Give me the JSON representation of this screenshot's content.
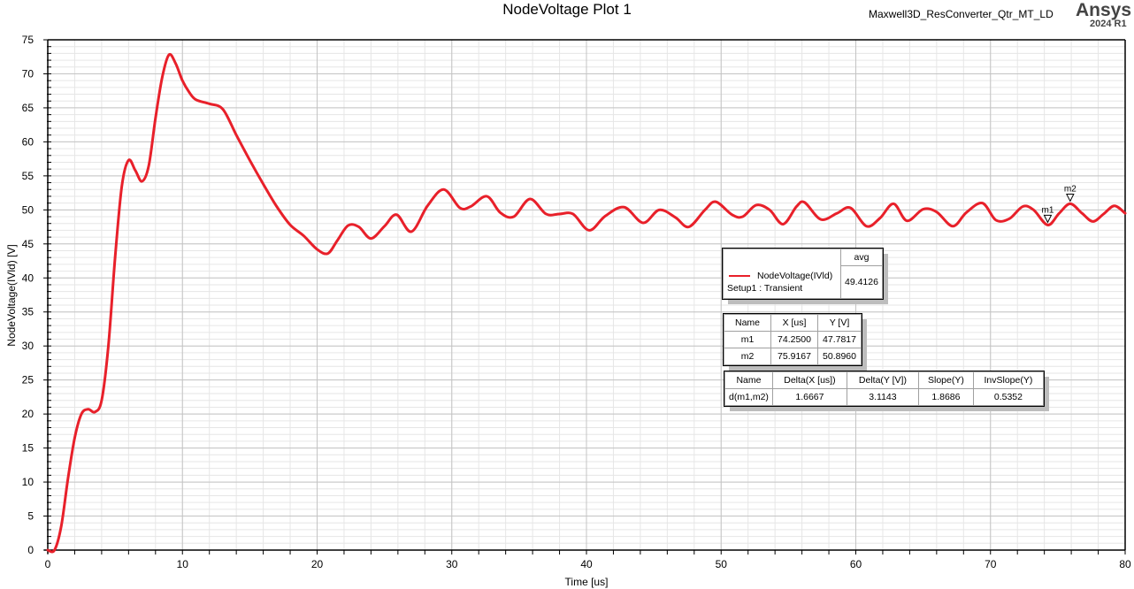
{
  "header": {
    "title": "NodeVoltage Plot 1",
    "project": "Maxwell3D_ResConverter_Qtr_MT_LD",
    "brand": "Ansys",
    "version": "2024 R1"
  },
  "legend": {
    "header": "avg",
    "trace_name": "NodeVoltage(IVld)",
    "setup": "Setup1 : Transient",
    "avg_value": "49.4126",
    "trace_color": "#e8202a"
  },
  "markers_table": {
    "headers": [
      "Name",
      "X [us]",
      "Y [V]"
    ],
    "rows": [
      [
        "m1",
        "74.2500",
        "47.7817"
      ],
      [
        "m2",
        "75.9167",
        "50.8960"
      ]
    ]
  },
  "delta_table": {
    "headers": [
      "Name",
      "Delta(X [us])",
      "Delta(Y [V])",
      "Slope(Y)",
      "InvSlope(Y)"
    ],
    "rows": [
      [
        "d(m1,m2)",
        "1.6667",
        "3.1143",
        "1.8686",
        "0.5352"
      ]
    ]
  },
  "chart_data": {
    "type": "line",
    "title": "NodeVoltage Plot 1",
    "xlabel": "Time [us]",
    "ylabel": "NodeVoltage(IVld) [V]",
    "xlim": [
      0,
      80
    ],
    "ylim": [
      0,
      75
    ],
    "xticks": [
      0,
      10,
      20,
      30,
      40,
      50,
      60,
      70,
      80
    ],
    "yticks": [
      0,
      5,
      10,
      15,
      20,
      25,
      30,
      35,
      40,
      45,
      50,
      55,
      60,
      65,
      70,
      75
    ],
    "grid": true,
    "legend_position": "inside-right-middle",
    "series": [
      {
        "name": "NodeVoltage(IVld)",
        "color": "#e8202a",
        "x": [
          0,
          0.5,
          1.0,
          1.5,
          2.0,
          2.5,
          3.0,
          3.5,
          4.0,
          4.5,
          5.0,
          5.5,
          6.0,
          6.5,
          7.0,
          7.5,
          8.0,
          8.5,
          9.0,
          9.5,
          10.0,
          10.5,
          11.0,
          12.0,
          13.0,
          14.0,
          15.0,
          16.0,
          17.0,
          18.0,
          19.0,
          20.0,
          20.8,
          21.5,
          22.3,
          23.1,
          24.0,
          25.0,
          25.9,
          27.0,
          28.2,
          29.4,
          30.6,
          31.4,
          32.6,
          33.6,
          34.6,
          35.8,
          37.0,
          38.0,
          39.0,
          40.2,
          41.4,
          42.8,
          44.2,
          45.4,
          46.6,
          47.6,
          48.8,
          49.6,
          50.8,
          51.6,
          52.6,
          53.6,
          54.6,
          55.6,
          56.2,
          57.4,
          58.6,
          59.6,
          60.8,
          61.8,
          62.8,
          63.8,
          65.0,
          66.0,
          67.2,
          68.2,
          69.4,
          70.4,
          71.4,
          72.4,
          73.2,
          74.25,
          75.1,
          75.92,
          76.8,
          77.6,
          78.4,
          79.2,
          80.0
        ],
        "values": [
          0,
          0,
          3.5,
          10.5,
          16.5,
          20.0,
          20.7,
          20.3,
          22.0,
          30.0,
          43.0,
          53.5,
          57.3,
          55.8,
          54.2,
          56.5,
          63.5,
          69.5,
          72.8,
          71.5,
          69.0,
          67.3,
          66.2,
          65.6,
          64.8,
          61.0,
          57.3,
          53.8,
          50.5,
          47.8,
          46.2,
          44.2,
          43.6,
          45.5,
          47.7,
          47.5,
          45.8,
          47.6,
          49.3,
          46.8,
          50.6,
          53.0,
          50.3,
          50.5,
          52.0,
          49.6,
          49.0,
          51.6,
          49.4,
          49.4,
          49.4,
          47.0,
          49.1,
          50.4,
          48.1,
          50.0,
          48.9,
          47.5,
          50.0,
          51.2,
          49.3,
          49.0,
          50.7,
          50.0,
          47.9,
          50.5,
          51.1,
          48.6,
          49.5,
          50.3,
          47.6,
          48.8,
          50.9,
          48.4,
          50.1,
          49.7,
          47.6,
          49.6,
          51.0,
          48.5,
          48.7,
          50.5,
          50.0,
          47.78,
          49.5,
          50.9,
          49.5,
          48.3,
          49.4,
          50.6,
          49.5
        ]
      }
    ],
    "markers": [
      {
        "name": "m1",
        "x": 74.25,
        "y": 47.7817
      },
      {
        "name": "m2",
        "x": 75.9167,
        "y": 50.896
      }
    ],
    "annotations": [
      "avg = 49.4126 (Setup1 : Transient)",
      "d(m1,m2): dX=1.6667, dY=3.1143, Slope=1.8686, InvSlope=0.5352"
    ]
  }
}
